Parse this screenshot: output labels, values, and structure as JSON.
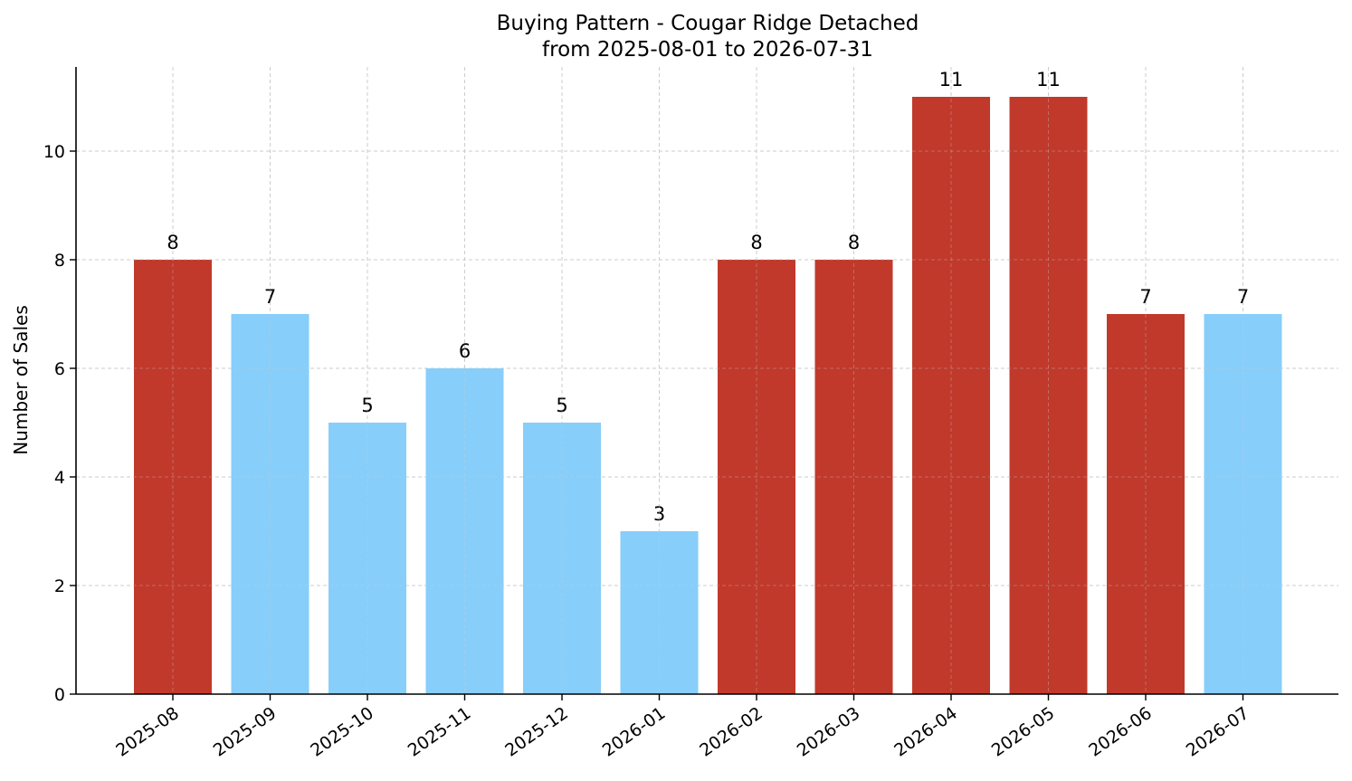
{
  "chart_data": {
    "type": "bar",
    "title": "Buying Pattern - Cougar Ridge Detached",
    "subtitle": "from 2025-08-01 to 2026-07-31",
    "xlabel": "",
    "ylabel": "Number of Sales",
    "categories": [
      "2025-08",
      "2025-09",
      "2025-10",
      "2025-11",
      "2025-12",
      "2026-01",
      "2026-02",
      "2026-03",
      "2026-04",
      "2026-05",
      "2026-06",
      "2026-07"
    ],
    "values": [
      8,
      7,
      5,
      6,
      5,
      3,
      8,
      8,
      11,
      11,
      7,
      7
    ],
    "bar_colors": [
      "#c0392b",
      "#87cefa",
      "#87cefa",
      "#87cefa",
      "#87cefa",
      "#87cefa",
      "#c0392b",
      "#c0392b",
      "#c0392b",
      "#c0392b",
      "#c0392b",
      "#87cefa"
    ],
    "ylim": [
      0,
      11.55
    ],
    "yticks": [
      0,
      2,
      4,
      6,
      8,
      10
    ],
    "grid": true,
    "legend": "none"
  }
}
